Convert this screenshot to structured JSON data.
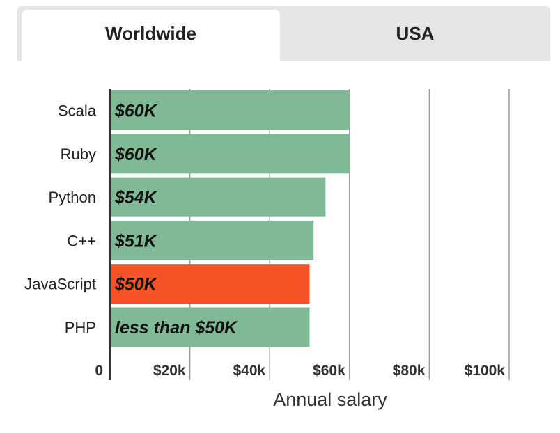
{
  "tabs": [
    {
      "label": "Worldwide",
      "active": true
    },
    {
      "label": "USA",
      "active": false
    }
  ],
  "colors": {
    "bar_default": "#80b996",
    "bar_highlight": "#f55225",
    "grid": "#9a9a9a",
    "axis": "#333333",
    "text": "#222222"
  },
  "chart_data": {
    "type": "bar",
    "orientation": "horizontal",
    "categories": [
      "Scala",
      "Ruby",
      "Python",
      "C++",
      "JavaScript",
      "PHP"
    ],
    "values": [
      60,
      60,
      54,
      51,
      50,
      50
    ],
    "unit": "thousand USD",
    "data_labels": [
      "$60K",
      "$60K",
      "$54K",
      "$51K",
      "$50K",
      "less than $50K"
    ],
    "highlight": "JavaScript",
    "xlabel": "Annual salary",
    "xlim": [
      0,
      110
    ],
    "xticks": [
      0,
      20,
      40,
      60,
      80,
      100
    ],
    "xtick_labels": [
      "0",
      "$20k",
      "$40k",
      "$60k",
      "$80k",
      "$100k"
    ],
    "grid": true
  }
}
